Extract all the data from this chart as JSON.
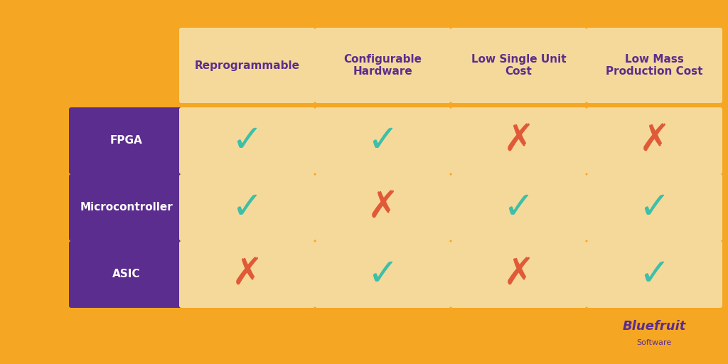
{
  "background_color": "#F5A623",
  "cell_color": "#F5D99A",
  "header_bg": "#F5A623",
  "row_label_bg": "#5B2D8E",
  "row_label_text_color": "#FFFFFF",
  "header_text_color": "#5B2D8E",
  "check_color": "#3DBFA8",
  "cross_color": "#E05A38",
  "columns": [
    "Reprogrammable",
    "Configurable\nHardware",
    "Low Single Unit\nCost",
    "Low Mass\nProduction Cost"
  ],
  "rows": [
    "FPGA",
    "Microcontroller",
    "ASIC"
  ],
  "data": [
    [
      true,
      true,
      false,
      false
    ],
    [
      true,
      false,
      true,
      true
    ],
    [
      false,
      true,
      false,
      true
    ]
  ],
  "col_header_fontsize": 11,
  "row_label_fontsize": 11,
  "cell_fontsize": 28,
  "logo_text": "Bluefruit",
  "logo_subtext": "Software",
  "logo_color": "#5B2D8E"
}
